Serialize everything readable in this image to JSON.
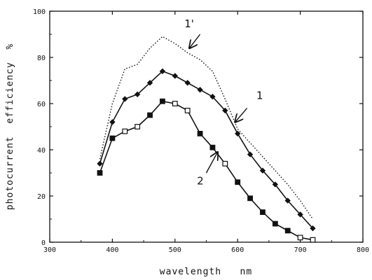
{
  "chart_data": {
    "type": "line",
    "xlabel": "wavelength   nm",
    "ylabel": "photocurrent  efficiency  %",
    "xlim": [
      300,
      800
    ],
    "ylim": [
      0,
      100
    ],
    "x_ticks": [
      "300",
      "400",
      "500",
      "600",
      "700",
      "800"
    ],
    "y_ticks": [
      "0",
      "20",
      "40",
      "60",
      "80",
      "100"
    ],
    "grid": false,
    "series": [
      {
        "name": "1'",
        "style": "dotted",
        "marker": "none",
        "x": [
          380,
          400,
          420,
          440,
          460,
          480,
          500,
          520,
          540,
          560,
          580,
          600,
          620,
          640,
          660,
          680,
          700,
          720
        ],
        "y": [
          36,
          60,
          75,
          77,
          84,
          89,
          86,
          82,
          79,
          74,
          62,
          49,
          43,
          37,
          31,
          25,
          18,
          10
        ]
      },
      {
        "name": "1",
        "style": "solid",
        "marker": "diamond-filled",
        "x": [
          380,
          400,
          420,
          440,
          460,
          480,
          500,
          520,
          540,
          560,
          580,
          600,
          620,
          640,
          660,
          680,
          700,
          720
        ],
        "y": [
          34,
          52,
          62,
          64,
          69,
          74,
          72,
          69,
          66,
          63,
          57,
          47,
          38,
          31,
          25,
          18,
          12,
          6
        ]
      },
      {
        "name": "2",
        "style": "solid",
        "marker": "square",
        "markers_filled": [
          true,
          true,
          false,
          false,
          true,
          true,
          false,
          false,
          true,
          true,
          false,
          true,
          true,
          true,
          true,
          true,
          false,
          false
        ],
        "x": [
          380,
          400,
          420,
          440,
          460,
          480,
          500,
          520,
          540,
          560,
          580,
          600,
          620,
          640,
          660,
          680,
          700,
          720
        ],
        "y": [
          30,
          45,
          48,
          50,
          55,
          61,
          60,
          57,
          47,
          41,
          34,
          26,
          19,
          13,
          8,
          5,
          2,
          1
        ]
      }
    ],
    "annotations": [
      {
        "label": "1'",
        "series": "1'",
        "text_at": [
          515,
          93
        ],
        "arrow_from": [
          540,
          90
        ],
        "arrow_to": [
          523,
          84
        ]
      },
      {
        "label": "1",
        "series": "1",
        "text_at": [
          630,
          62
        ],
        "arrow_from": [
          615,
          58
        ],
        "arrow_to": [
          596,
          52
        ]
      },
      {
        "label": "2",
        "series": "2",
        "text_at": [
          535,
          25
        ],
        "arrow_from": [
          550,
          30
        ],
        "arrow_to": [
          568,
          39
        ]
      }
    ]
  }
}
